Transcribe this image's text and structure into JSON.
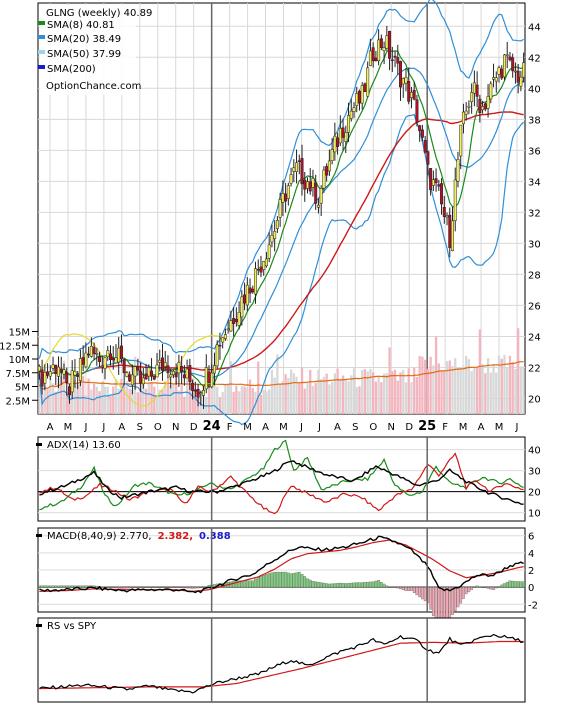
{
  "legend": {
    "title": "GLNG (weekly) 40.89",
    "items": [
      {
        "label": "SMA(8) 40.81",
        "color": "#1a8a1a"
      },
      {
        "label": "SMA(20) 38.49",
        "color": "#2f8fd8"
      },
      {
        "label": "SMA(50) 37.99",
        "color": "#9fd0f0"
      },
      {
        "label": "SMA(200)",
        "color": "#1a1ad0"
      }
    ],
    "site": "OptionChance.com"
  },
  "colors": {
    "up": "#f2ef5c",
    "down": "#b01028",
    "wick": "#222222",
    "sma8": "#1a8a1a",
    "sma50": "#d01818",
    "band": "#2f8fd8",
    "bandInner": "#e8d830",
    "volUp": "#d8d8d8",
    "volDown": "#f3b6bf",
    "volAvg": "#e06a10",
    "adx": "#000000",
    "diPlus": "#1a8a1a",
    "diMinus": "#d01818",
    "macd": "#000000",
    "signal": "#d01818",
    "histUp": "#7fcf7f",
    "histDown": "#f0a8b4",
    "rs": "#000000",
    "rsAvg": "#d01818"
  },
  "chart_data": [
    {
      "type": "candlestick",
      "name": "price",
      "ylim": [
        19,
        45.5
      ],
      "y_ticks": [
        "20",
        "22",
        "24",
        "26",
        "28",
        "30",
        "32",
        "34",
        "36",
        "38",
        "40",
        "42",
        "44"
      ],
      "x_ticks": [
        "A",
        "M",
        "J",
        "J",
        "A",
        "S",
        "O",
        "N",
        "D",
        "24",
        "F",
        "M",
        "A",
        "M",
        "J",
        "J",
        "A",
        "S",
        "O",
        "N",
        "D",
        "25",
        "F",
        "M",
        "A",
        "M",
        "J"
      ],
      "year_marks": [
        "24",
        "25"
      ],
      "volume_ticks": [
        "15M",
        "12.5M",
        "10M",
        "7.5M",
        "5M",
        "2.5M"
      ],
      "volume_max": 16,
      "price_path": [
        [
          0,
          21.4
        ],
        [
          4,
          21.8
        ],
        [
          7,
          22.3
        ],
        [
          10,
          20.5
        ],
        [
          14,
          21.5
        ],
        [
          18,
          23.1
        ],
        [
          22,
          22.5
        ],
        [
          26,
          23.3
        ],
        [
          30,
          22.2
        ],
        [
          34,
          21.4
        ],
        [
          38,
          20.9
        ],
        [
          42,
          21.7
        ],
        [
          46,
          22.3
        ],
        [
          50,
          22.0
        ],
        [
          54,
          21.3
        ],
        [
          58,
          20.6
        ],
        [
          62,
          21.8
        ],
        [
          66,
          23.8
        ],
        [
          70,
          25.0
        ],
        [
          74,
          26.4
        ],
        [
          78,
          27.6
        ],
        [
          82,
          29.2
        ],
        [
          86,
          31.0
        ],
        [
          90,
          33.3
        ],
        [
          94,
          34.8
        ],
        [
          98,
          34.0
        ],
        [
          102,
          33.0
        ],
        [
          106,
          35.2
        ],
        [
          110,
          37.2
        ],
        [
          114,
          38.6
        ],
        [
          118,
          39.4
        ],
        [
          122,
          42.4
        ],
        [
          126,
          43.1
        ],
        [
          130,
          41.5
        ],
        [
          134,
          40.2
        ],
        [
          138,
          38.3
        ],
        [
          142,
          34.5
        ],
        [
          146,
          33.0
        ],
        [
          150,
          30.5
        ],
        [
          154,
          37.0
        ],
        [
          158,
          40.0
        ],
        [
          162,
          38.8
        ],
        [
          166,
          40.3
        ],
        [
          170,
          41.8
        ],
        [
          174,
          40.9
        ],
        [
          177,
          40.9
        ]
      ]
    },
    {
      "type": "line",
      "name": "adx",
      "label": "ADX(14) 13.60",
      "ylim": [
        6,
        46
      ],
      "y_ticks": [
        "40",
        "30",
        "20",
        "10"
      ],
      "series": [
        {
          "key": "adx",
          "points": [
            [
              0,
              19
            ],
            [
              10,
              23
            ],
            [
              20,
              29
            ],
            [
              25,
              21
            ],
            [
              30,
              17
            ],
            [
              40,
              20
            ],
            [
              50,
              22
            ],
            [
              55,
              20
            ],
            [
              65,
              20
            ],
            [
              75,
              24
            ],
            [
              85,
              29
            ],
            [
              92,
              35
            ],
            [
              97,
              32
            ],
            [
              105,
              28
            ],
            [
              115,
              25
            ],
            [
              123,
              32
            ],
            [
              130,
              28
            ],
            [
              138,
              23
            ],
            [
              145,
              25
            ],
            [
              150,
              30
            ],
            [
              157,
              24
            ],
            [
              165,
              19
            ],
            [
              172,
              16
            ],
            [
              177,
              14
            ]
          ]
        },
        {
          "key": "diPlus",
          "points": [
            [
              0,
              12
            ],
            [
              8,
              15
            ],
            [
              15,
              22
            ],
            [
              20,
              31
            ],
            [
              24,
              18
            ],
            [
              28,
              13
            ],
            [
              35,
              23
            ],
            [
              40,
              24
            ],
            [
              50,
              18
            ],
            [
              57,
              20
            ],
            [
              62,
              24
            ],
            [
              70,
              21
            ],
            [
              75,
              25
            ],
            [
              82,
              31
            ],
            [
              86,
              40
            ],
            [
              90,
              44
            ],
            [
              93,
              30
            ],
            [
              98,
              36
            ],
            [
              103,
              21
            ],
            [
              108,
              23
            ],
            [
              112,
              25
            ],
            [
              120,
              26
            ],
            [
              126,
              35
            ],
            [
              130,
              23
            ],
            [
              135,
              18
            ],
            [
              140,
              20
            ],
            [
              145,
              32
            ],
            [
              150,
              24
            ],
            [
              156,
              22
            ],
            [
              162,
              27
            ],
            [
              168,
              24
            ],
            [
              172,
              26
            ],
            [
              177,
              22
            ]
          ]
        },
        {
          "key": "diMinus",
          "points": [
            [
              0,
              20
            ],
            [
              6,
              22
            ],
            [
              12,
              16
            ],
            [
              17,
              18
            ],
            [
              22,
              23
            ],
            [
              27,
              21
            ],
            [
              33,
              16
            ],
            [
              40,
              20
            ],
            [
              48,
              21
            ],
            [
              53,
              14
            ],
            [
              58,
              22
            ],
            [
              63,
              20
            ],
            [
              70,
              27
            ],
            [
              76,
              19
            ],
            [
              82,
              12
            ],
            [
              86,
              9
            ],
            [
              92,
              23
            ],
            [
              98,
              19
            ],
            [
              105,
              15
            ],
            [
              112,
              19
            ],
            [
              118,
              17
            ],
            [
              124,
              11
            ],
            [
              130,
              18
            ],
            [
              136,
              21
            ],
            [
              142,
              33
            ],
            [
              146,
              28
            ],
            [
              152,
              38
            ],
            [
              156,
              22
            ],
            [
              160,
              25
            ],
            [
              165,
              20
            ],
            [
              170,
              24
            ],
            [
              177,
              21
            ]
          ]
        }
      ]
    },
    {
      "type": "line",
      "name": "macd",
      "label": "MACD(8,40,9) 2.770,",
      "signal_value": "2.382,",
      "hist_value": "0.388",
      "ylim": [
        -2.9,
        6.9
      ],
      "y_ticks": [
        "6",
        "4",
        "2",
        "0",
        "-2"
      ],
      "series": [
        {
          "key": "macd",
          "points": [
            [
              0,
              -0.4
            ],
            [
              10,
              -0.3
            ],
            [
              20,
              -0.1
            ],
            [
              30,
              -0.4
            ],
            [
              40,
              -0.3
            ],
            [
              50,
              -0.3
            ],
            [
              56,
              -0.6
            ],
            [
              60,
              -0.4
            ],
            [
              66,
              0.3
            ],
            [
              72,
              1.0
            ],
            [
              78,
              1.5
            ],
            [
              84,
              2.8
            ],
            [
              90,
              4.0
            ],
            [
              95,
              4.7
            ],
            [
              100,
              4.4
            ],
            [
              106,
              4.4
            ],
            [
              112,
              4.7
            ],
            [
              118,
              5.2
            ],
            [
              124,
              5.8
            ],
            [
              130,
              5.3
            ],
            [
              136,
              4.3
            ],
            [
              142,
              2.4
            ],
            [
              146,
              -0.2
            ],
            [
              150,
              -0.4
            ],
            [
              154,
              0.2
            ],
            [
              160,
              1.4
            ],
            [
              166,
              1.4
            ],
            [
              172,
              2.5
            ],
            [
              177,
              2.8
            ]
          ]
        },
        {
          "key": "signal",
          "points": [
            [
              0,
              -0.5
            ],
            [
              10,
              -0.4
            ],
            [
              20,
              -0.2
            ],
            [
              30,
              -0.3
            ],
            [
              40,
              -0.3
            ],
            [
              50,
              -0.3
            ],
            [
              56,
              -0.5
            ],
            [
              62,
              -0.3
            ],
            [
              68,
              0.2
            ],
            [
              74,
              0.7
            ],
            [
              80,
              1.2
            ],
            [
              86,
              2.1
            ],
            [
              92,
              3.3
            ],
            [
              98,
              3.9
            ],
            [
              104,
              4.1
            ],
            [
              110,
              4.3
            ],
            [
              116,
              4.7
            ],
            [
              122,
              5.2
            ],
            [
              128,
              5.5
            ],
            [
              134,
              4.9
            ],
            [
              140,
              3.9
            ],
            [
              144,
              3.2
            ],
            [
              150,
              1.9
            ],
            [
              156,
              1.1
            ],
            [
              162,
              1.4
            ],
            [
              168,
              1.7
            ],
            [
              174,
              2.2
            ],
            [
              177,
              2.4
            ]
          ]
        }
      ]
    },
    {
      "type": "line",
      "name": "rs",
      "label": "RS vs SPY",
      "ylim": [
        0,
        100
      ],
      "series": [
        {
          "key": "rs",
          "points": [
            [
              0,
              16
            ],
            [
              8,
              18
            ],
            [
              16,
              20
            ],
            [
              24,
              18
            ],
            [
              32,
              15
            ],
            [
              40,
              19
            ],
            [
              48,
              14
            ],
            [
              56,
              12
            ],
            [
              64,
              22
            ],
            [
              72,
              28
            ],
            [
              80,
              33
            ],
            [
              86,
              42
            ],
            [
              92,
              50
            ],
            [
              98,
              43
            ],
            [
              104,
              52
            ],
            [
              110,
              60
            ],
            [
              116,
              66
            ],
            [
              122,
              74
            ],
            [
              126,
              68
            ],
            [
              132,
              78
            ],
            [
              138,
              73
            ],
            [
              142,
              62
            ],
            [
              146,
              58
            ],
            [
              150,
              75
            ],
            [
              154,
              67
            ],
            [
              160,
              75
            ],
            [
              166,
              80
            ],
            [
              172,
              76
            ],
            [
              177,
              72
            ]
          ]
        },
        {
          "key": "rsAvg",
          "points": [
            [
              0,
              16
            ],
            [
              20,
              17
            ],
            [
              40,
              18
            ],
            [
              60,
              18
            ],
            [
              72,
              22
            ],
            [
              84,
              31
            ],
            [
              96,
              40
            ],
            [
              108,
              50
            ],
            [
              120,
              60
            ],
            [
              132,
              70
            ],
            [
              144,
              71
            ],
            [
              156,
              70
            ],
            [
              168,
              72
            ],
            [
              177,
              72
            ]
          ]
        }
      ]
    }
  ]
}
